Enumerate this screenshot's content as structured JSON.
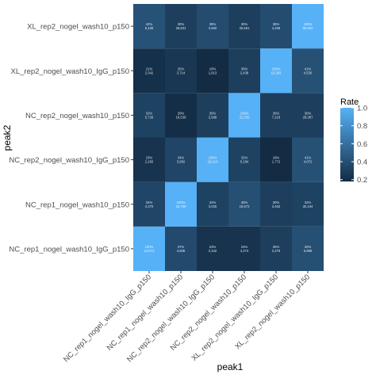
{
  "chart_data": {
    "type": "heatmap",
    "xlabel": "peak1",
    "ylabel": "peak2",
    "x_categories": [
      "NC_rep1_nogel_wash10_IgG_p150",
      "NC_rep1_nogel_wash10_p150",
      "NC_rep2_nogel_wash10_IgG_p150",
      "NC_rep2_nogel_wash10_p150",
      "XL_rep2_nogel_wash10_IgG_p150",
      "XL_rep2_nogel_wash10_p150"
    ],
    "y_categories": [
      "NC_rep1_nogel_wash10_IgG_p150",
      "NC_rep1_nogel_wash10_p150",
      "NC_rep2_nogel_wash10_IgG_p150",
      "NC_rep2_nogel_wash10_p150",
      "XL_rep2_nogel_wash10_IgG_p150",
      "XL_rep2_nogel_wash10_p150"
    ],
    "values": [
      [
        1.0,
        0.37,
        0.23,
        0.23,
        0.3,
        0.4
      ],
      [
        0.34,
        1.0,
        0.32,
        0.4,
        0.3,
        0.32
      ],
      [
        0.23,
        0.34,
        1.0,
        0.32,
        0.18,
        0.41
      ],
      [
        0.32,
        0.2,
        0.3,
        1.0,
        0.3,
        0.3
      ],
      [
        0.21,
        0.25,
        0.18,
        0.3,
        1.0,
        0.41
      ],
      [
        0.42,
        0.3,
        0.38,
        0.3,
        0.38,
        1.0
      ]
    ],
    "cell_labels": [
      [
        "100%\n12,573",
        "37%\n4,608",
        "23%\n2,342",
        "23%\n4,373",
        "30%\n2,276",
        "40%\n5,889"
      ],
      [
        "34%\n4,370",
        "100%\n34,736",
        "32%\n3,025",
        "40%\n16,572",
        "30%\n3,463",
        "32%\n30,344"
      ],
      [
        "23%\n2,260",
        "34%\n3,902",
        "100%\n10,213",
        "32%\n5,184",
        "18%\n1,772",
        "41%\n4,072"
      ],
      [
        "32%\n5,726",
        "20%\n16,536",
        "30%\n2,589",
        "100%\n31,335",
        "30%\n7,219",
        "30%\n28,387"
      ],
      [
        "21%\n2,342",
        "25%\n3,714",
        "18%\n1,813",
        "30%\n2,438",
        "100%\n10,283",
        "41%\n4,530"
      ],
      [
        "42%\n5,106",
        "30%\n28,831",
        "38%\n3,650",
        "30%\n26,551",
        "38%\n4,408",
        "100%\n66,064"
      ]
    ],
    "legend": {
      "title": "Rate",
      "ticks": [
        1.0,
        0.8,
        0.6,
        0.4,
        0.2
      ],
      "tick_labels": [
        "1.0",
        "0.8",
        "0.6",
        "0.4",
        "0.2"
      ],
      "range": [
        0.18,
        1.0
      ],
      "placement": "right"
    },
    "colors": {
      "low": "#132B43",
      "high": "#56B1F7",
      "panel_background": "#EBEBEB"
    }
  }
}
